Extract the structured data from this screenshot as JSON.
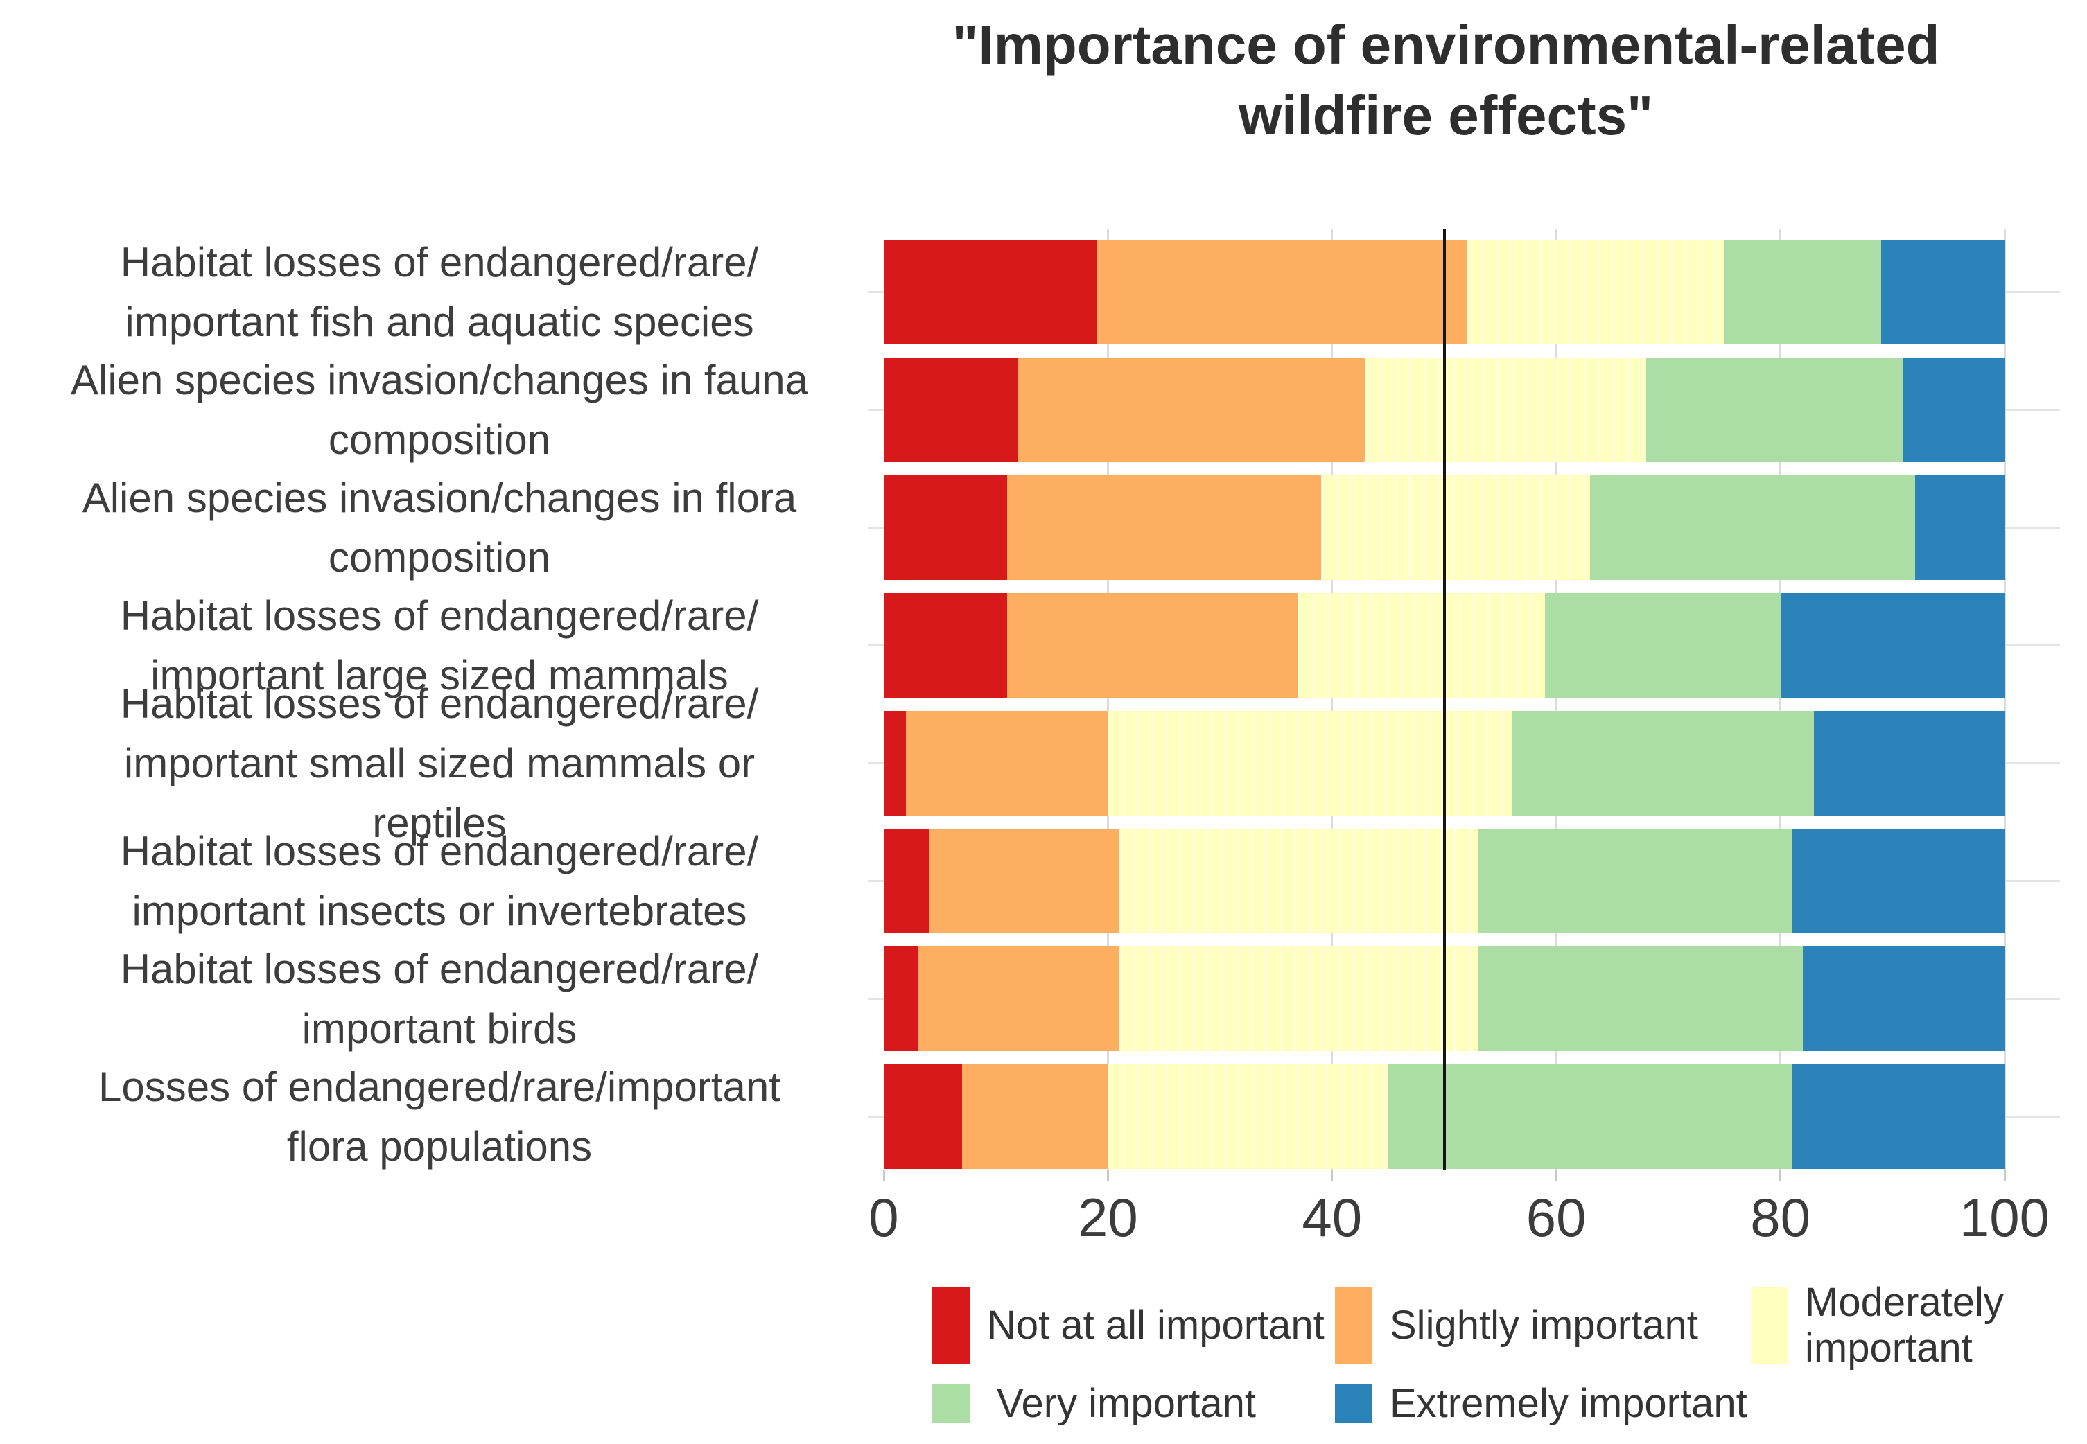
{
  "title": {
    "text": "\"Importance of environmental-related wildfire effects\"",
    "lines": [
      "\"Importance of environmental-related",
      "wildfire effects\""
    ]
  },
  "axis": {
    "tick_values": [
      0,
      20,
      40,
      60,
      80,
      100
    ]
  },
  "chart_data": {
    "type": "bar",
    "orientation": "horizontal",
    "stacked": true,
    "title": "\"Importance of environmental-related wildfire effects\"",
    "xlim": [
      0,
      100
    ],
    "x_ticks": [
      0,
      20,
      40,
      60,
      80,
      100
    ],
    "reference_line_x": 50,
    "grid": "light vertical and horizontal gridlines",
    "legend_position": "bottom",
    "categories": [
      {
        "text": "Habitat losses of endangered/rare/important fish and aquatic species",
        "lines": [
          "Habitat losses of endangered/rare/",
          "important fish and aquatic species"
        ]
      },
      {
        "text": "Alien species invasion/changes in fauna composition",
        "lines": [
          "Alien species invasion/changes in fauna",
          "composition"
        ]
      },
      {
        "text": "Alien species invasion/changes in flora composition",
        "lines": [
          "Alien species invasion/changes in flora",
          "composition"
        ]
      },
      {
        "text": "Habitat losses of endangered/rare/important large sized mammals",
        "lines": [
          "Habitat losses of endangered/rare/",
          "important large sized mammals"
        ]
      },
      {
        "text": "Habitat losses of endangered/rare/important small sized mammals or reptiles",
        "lines": [
          "Habitat losses of endangered/rare/",
          "important small sized mammals or",
          "reptiles"
        ]
      },
      {
        "text": "Habitat losses of endangered/rare/important insects or invertebrates",
        "lines": [
          "Habitat losses of endangered/rare/",
          "important insects or invertebrates"
        ]
      },
      {
        "text": "Habitat losses of endangered/rare/important birds",
        "lines": [
          "Habitat losses of endangered/rare/",
          "important birds"
        ]
      },
      {
        "text": "Losses of endangered/rare/important flora populations",
        "lines": [
          "Losses of endangered/rare/important",
          "flora populations"
        ]
      }
    ],
    "series": [
      {
        "name": "Not at all important",
        "color": "#d7191c",
        "values": [
          19,
          12,
          11,
          11,
          2,
          4,
          3,
          7
        ]
      },
      {
        "name": "Slightly important",
        "color": "#fdae61",
        "values": [
          33,
          31,
          28,
          26,
          18,
          17,
          18,
          13
        ]
      },
      {
        "name": "Moderately important",
        "color": "#ffffbf",
        "values": [
          23,
          25,
          24,
          22,
          36,
          32,
          32,
          25
        ]
      },
      {
        "name": "Very important",
        "color": "#abdda4",
        "values": [
          14,
          23,
          29,
          21,
          27,
          28,
          29,
          36
        ]
      },
      {
        "name": "Extremely important",
        "color": "#2b83ba",
        "values": [
          11,
          9,
          8,
          20,
          17,
          19,
          18,
          19
        ]
      }
    ]
  },
  "colors": {
    "not_at_all": "#d7191c",
    "slightly": "#fdae61",
    "moderately": "#ffffbf",
    "very": "#abdda4",
    "extremely": "#2b83ba",
    "reference_line": "#141414",
    "gridline": "#e4e4e4",
    "text": "#3d3d3d"
  }
}
